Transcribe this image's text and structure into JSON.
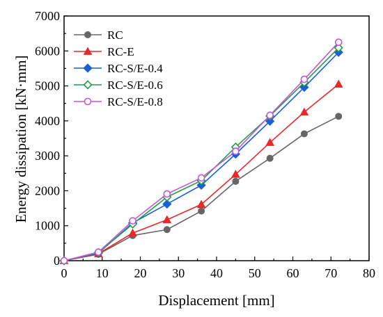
{
  "chart_data": {
    "type": "line",
    "xlabel": "Displacement [mm]",
    "ylabel": "Energy dissipation [kN·mm]",
    "xlim": [
      0,
      80
    ],
    "ylim": [
      0,
      7000
    ],
    "x_ticks": [
      "0",
      "10",
      "20",
      "30",
      "40",
      "50",
      "60",
      "70",
      "80"
    ],
    "y_ticks": [
      "0",
      "1000",
      "2000",
      "3000",
      "4000",
      "5000",
      "6000",
      "7000"
    ],
    "grid": false,
    "legend_position": "top-left",
    "x": [
      0,
      9,
      18,
      27,
      36,
      45,
      54,
      63,
      72
    ],
    "series": [
      {
        "name": "RC",
        "color": "#666666",
        "marker": "circle-filled",
        "values": [
          0,
          185,
          720,
          890,
          1420,
          2270,
          2930,
          3630,
          4130
        ]
      },
      {
        "name": "RC-E",
        "color": "#e8282a",
        "marker": "triangle-filled",
        "values": [
          0,
          200,
          790,
          1170,
          1610,
          2470,
          3380,
          4250,
          5050
        ]
      },
      {
        "name": "RC-S/E-0.4",
        "color": "#1a5fd6",
        "marker": "diamond-filled",
        "values": [
          0,
          215,
          1080,
          1620,
          2160,
          3050,
          3990,
          4960,
          5960
        ]
      },
      {
        "name": "RC-S/E-0.6",
        "color": "#1e9e4a",
        "marker": "diamond-open",
        "values": [
          0,
          230,
          1050,
          1820,
          2290,
          3250,
          4140,
          5100,
          6090
        ]
      },
      {
        "name": "RC-S/E-0.8",
        "color": "#c257d8",
        "marker": "circle-open",
        "values": [
          0,
          245,
          1140,
          1910,
          2370,
          3130,
          4160,
          5190,
          6250
        ]
      }
    ]
  }
}
